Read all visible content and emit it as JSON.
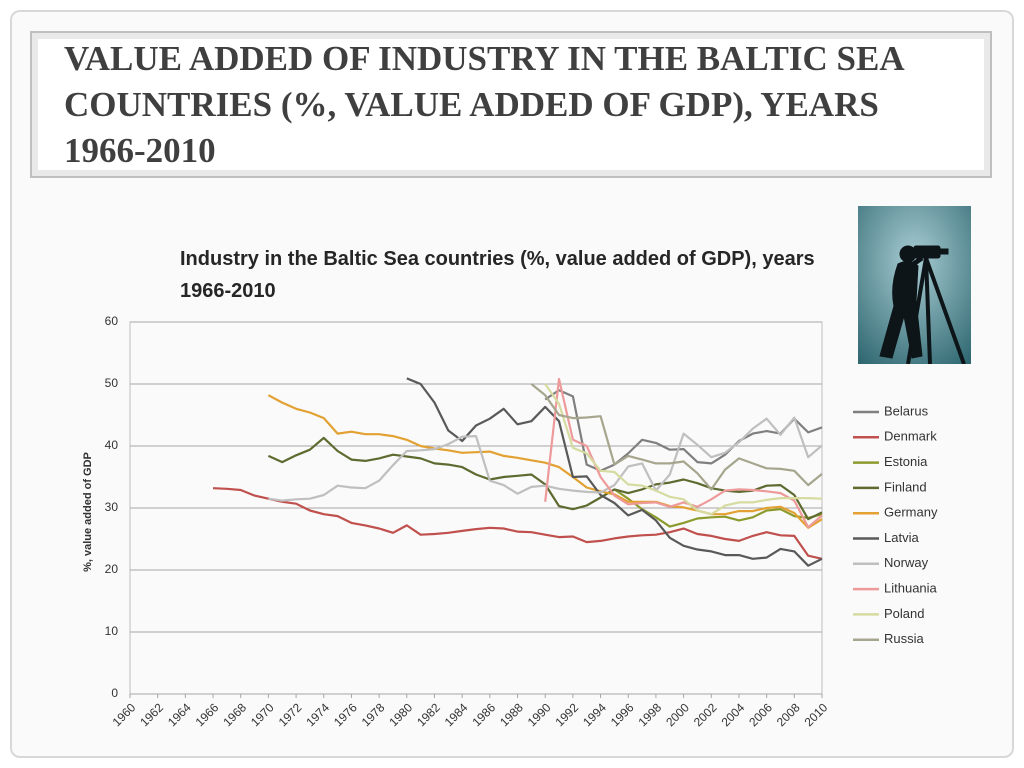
{
  "slide_title": "VALUE ADDED OF INDUSTRY IN THE BALTIC SEA COUNTRIES (%, VALUE ADDED OF GDP), YEARS 1966-2010",
  "chart_data": {
    "type": "line",
    "title": "Industry in the Baltic Sea countries (%, value added of GDP), years 1966-2010",
    "y_label": "%, value added of GDP",
    "xlim": [
      1960,
      2010
    ],
    "xticks": [
      1960,
      1962,
      1964,
      1966,
      1968,
      1970,
      1972,
      1974,
      1976,
      1978,
      1980,
      1982,
      1984,
      1986,
      1988,
      1990,
      1992,
      1994,
      1996,
      1998,
      2000,
      2002,
      2004,
      2006,
      2008,
      2010
    ],
    "ylim": [
      0,
      60
    ],
    "yticks": [
      0,
      10,
      20,
      30,
      40,
      50,
      60
    ],
    "grid": true,
    "legend": "right",
    "x": [
      1966,
      1967,
      1968,
      1969,
      1970,
      1971,
      1972,
      1973,
      1974,
      1975,
      1976,
      1977,
      1978,
      1979,
      1980,
      1981,
      1982,
      1983,
      1984,
      1985,
      1986,
      1987,
      1988,
      1989,
      1990,
      1991,
      1992,
      1993,
      1994,
      1995,
      1996,
      1997,
      1998,
      1999,
      2000,
      2001,
      2002,
      2003,
      2004,
      2005,
      2006,
      2007,
      2008,
      2009,
      2010
    ],
    "series": [
      {
        "name": "Belarus",
        "color": "#7f7f7f",
        "values": [
          null,
          null,
          null,
          null,
          null,
          null,
          null,
          null,
          null,
          null,
          null,
          null,
          null,
          null,
          null,
          null,
          null,
          null,
          null,
          null,
          null,
          null,
          null,
          null,
          47.5,
          49.0,
          48.0,
          37.0,
          36.0,
          37.0,
          38.8,
          41.0,
          40.5,
          39.4,
          39.5,
          37.4,
          37.2,
          38.6,
          40.8,
          42.0,
          42.4,
          42.0,
          44.4,
          42.2,
          43.0
        ]
      },
      {
        "name": "Denmark",
        "color": "#c0504d",
        "values": [
          33.2,
          33.1,
          32.9,
          32.0,
          31.5,
          31.0,
          30.7,
          29.6,
          29.0,
          28.7,
          27.6,
          27.2,
          26.7,
          26.0,
          27.2,
          25.7,
          25.8,
          26.0,
          26.3,
          26.6,
          26.8,
          26.7,
          26.2,
          26.1,
          25.7,
          25.3,
          25.4,
          24.5,
          24.7,
          25.1,
          25.4,
          25.6,
          25.7,
          26.1,
          26.7,
          25.8,
          25.5,
          25.0,
          24.7,
          25.5,
          26.1,
          25.6,
          25.5,
          22.3,
          21.8
        ]
      },
      {
        "name": "Estonia",
        "color": "#8c9a2e",
        "values": [
          null,
          null,
          null,
          null,
          null,
          null,
          null,
          null,
          null,
          null,
          null,
          null,
          null,
          null,
          null,
          null,
          null,
          null,
          null,
          null,
          null,
          null,
          null,
          null,
          null,
          null,
          null,
          null,
          null,
          33.0,
          31.5,
          29.8,
          28.5,
          27.0,
          27.6,
          28.3,
          28.5,
          28.6,
          28.0,
          28.5,
          29.6,
          29.8,
          28.7,
          28.4,
          29.0
        ]
      },
      {
        "name": "Finland",
        "color": "#5e6b30",
        "values": [
          null,
          null,
          null,
          null,
          38.4,
          37.4,
          38.5,
          39.4,
          41.3,
          39.2,
          37.8,
          37.6,
          38.0,
          38.6,
          38.3,
          38.0,
          37.2,
          37.0,
          36.6,
          35.4,
          34.6,
          35.0,
          35.2,
          35.4,
          33.8,
          30.3,
          29.8,
          30.4,
          31.7,
          33.0,
          32.4,
          33.0,
          33.8,
          34.1,
          34.6,
          34.0,
          33.2,
          32.8,
          32.6,
          32.8,
          33.6,
          33.7,
          32.1,
          28.2,
          29.3
        ]
      },
      {
        "name": "Germany",
        "color": "#e2a132",
        "values": [
          null,
          null,
          null,
          null,
          48.2,
          47.0,
          46.0,
          45.4,
          44.5,
          42.0,
          42.3,
          41.9,
          41.9,
          41.6,
          41.0,
          40.0,
          39.6,
          39.3,
          38.9,
          39.0,
          39.1,
          38.4,
          38.1,
          37.7,
          37.3,
          36.6,
          35.0,
          33.3,
          32.7,
          32.2,
          31.0,
          31.0,
          31.0,
          30.3,
          30.1,
          29.6,
          29.0,
          29.0,
          29.5,
          29.5,
          30.0,
          30.2,
          29.2,
          26.8,
          28.2
        ]
      },
      {
        "name": "Latvia",
        "color": "#595959",
        "values": [
          null,
          null,
          null,
          null,
          null,
          null,
          null,
          null,
          null,
          null,
          null,
          null,
          null,
          null,
          50.9,
          50.0,
          47.0,
          42.5,
          40.8,
          43.3,
          44.4,
          46.0,
          43.5,
          44.0,
          46.3,
          44.0,
          35.0,
          35.1,
          32.1,
          30.8,
          28.8,
          29.7,
          28.0,
          25.2,
          23.9,
          23.3,
          23.0,
          22.4,
          22.4,
          21.8,
          22.0,
          23.4,
          23.0,
          20.7,
          21.8
        ]
      },
      {
        "name": "Norway",
        "color": "#bfbfbf",
        "values": [
          null,
          null,
          null,
          null,
          31.5,
          31.2,
          31.4,
          31.5,
          32.1,
          33.6,
          33.3,
          33.2,
          34.4,
          36.9,
          39.2,
          39.3,
          39.5,
          40.3,
          41.5,
          41.6,
          34.4,
          33.7,
          32.3,
          33.4,
          33.6,
          33.1,
          32.8,
          32.6,
          32.5,
          33.7,
          36.7,
          37.2,
          32.8,
          35.4,
          42.0,
          40.2,
          38.2,
          38.9,
          40.6,
          42.8,
          44.4,
          41.8,
          44.6,
          38.2,
          40.1
        ]
      },
      {
        "name": "Lithuania",
        "color": "#ee9a9a",
        "values": [
          null,
          null,
          null,
          null,
          null,
          null,
          null,
          null,
          null,
          null,
          null,
          null,
          null,
          null,
          null,
          null,
          null,
          null,
          null,
          null,
          null,
          null,
          null,
          null,
          31.0,
          50.8,
          41.0,
          40.0,
          35.0,
          32.0,
          30.6,
          30.8,
          30.9,
          30.2,
          30.9,
          30.2,
          31.4,
          32.8,
          33.0,
          32.9,
          32.7,
          32.4,
          31.2,
          26.9,
          28.8
        ]
      },
      {
        "name": "Poland",
        "color": "#d6dba0",
        "values": [
          null,
          null,
          null,
          null,
          null,
          null,
          null,
          null,
          null,
          null,
          null,
          null,
          null,
          null,
          null,
          null,
          null,
          null,
          null,
          null,
          null,
          null,
          null,
          null,
          50.0,
          46.8,
          39.7,
          38.8,
          36.0,
          35.8,
          33.8,
          33.6,
          32.8,
          31.8,
          31.4,
          29.6,
          29.0,
          30.4,
          30.9,
          30.9,
          31.3,
          31.6,
          31.6,
          31.6,
          31.5
        ]
      },
      {
        "name": "Russia",
        "color": "#a6a68e",
        "values": [
          null,
          null,
          null,
          null,
          null,
          null,
          null,
          null,
          null,
          null,
          null,
          null,
          null,
          null,
          null,
          null,
          null,
          null,
          null,
          null,
          null,
          null,
          null,
          50.0,
          48.2,
          45.0,
          44.5,
          44.6,
          44.8,
          37.0,
          38.4,
          37.8,
          37.2,
          37.2,
          37.5,
          35.6,
          33.0,
          36.2,
          38.0,
          37.2,
          36.4,
          36.3,
          36.0,
          33.7,
          35.5
        ]
      }
    ]
  }
}
